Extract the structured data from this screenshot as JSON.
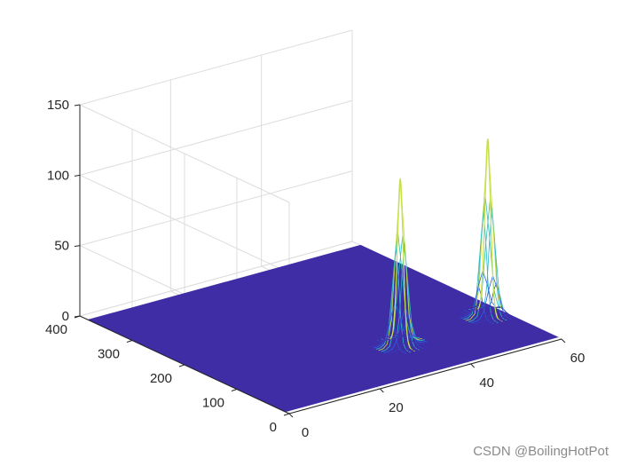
{
  "chart_data": {
    "type": "surface",
    "view": "3d-mesh",
    "xlim": [
      0,
      60
    ],
    "ylim": [
      0,
      400
    ],
    "zlim": [
      0,
      150
    ],
    "xticks": [
      "0",
      "20",
      "40",
      "60"
    ],
    "yticks": [
      "0",
      "100",
      "200",
      "300",
      "400"
    ],
    "zticks": [
      "0",
      "50",
      "100",
      "150"
    ],
    "grid": true,
    "base_color": "#3f2da6",
    "peaks": [
      {
        "x": 36,
        "y": 100,
        "z": 118
      },
      {
        "x": 57,
        "y": 115,
        "z": 125
      }
    ]
  },
  "watermark": "CSDN @BoilingHotPot"
}
